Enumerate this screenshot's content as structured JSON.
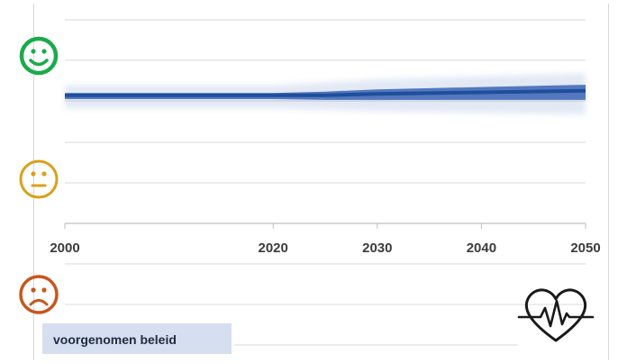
{
  "chart_data": {
    "type": "area",
    "x": [
      2000,
      2010,
      2020,
      2025,
      2030,
      2040,
      2050
    ],
    "xlim": [
      2000,
      2050
    ],
    "xticks": [
      "2000",
      "2020",
      "2030",
      "2040",
      "2050"
    ],
    "y_scale_levels": [
      "happy",
      "neutral",
      "sad"
    ],
    "series": [
      {
        "name": "voorgenomen beleid",
        "values": [
          0.85,
          0.85,
          0.85,
          0.85,
          0.86,
          0.87,
          0.88
        ],
        "band_low": [
          0.8,
          0.8,
          0.8,
          0.79,
          0.78,
          0.77,
          0.76
        ],
        "band_high": [
          0.88,
          0.88,
          0.88,
          0.9,
          0.92,
          0.94,
          0.96
        ]
      }
    ],
    "grid": true,
    "legend": "bottom-left"
  },
  "colors": {
    "line": "#1f4e9b",
    "band": "#3a64b5",
    "happy": "#1aab4a",
    "neutral": "#d9a11a",
    "sad": "#c8561e",
    "legend_bg": "#d6dff0",
    "grid": "#d8d8d8",
    "axis": "#bfbfbf",
    "heart": "#1a1a1a"
  },
  "icons": {
    "happy": "happy-face-icon",
    "neutral": "neutral-face-icon",
    "sad": "sad-face-icon",
    "heart": "heart-pulse-icon"
  },
  "legend": {
    "label": "voorgenomen beleid"
  }
}
